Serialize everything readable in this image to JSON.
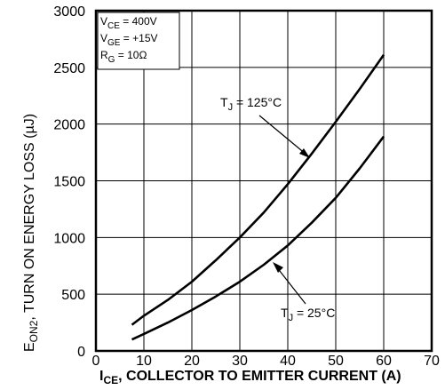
{
  "chart_data": {
    "type": "line",
    "x_range": [
      0,
      70
    ],
    "y_range": [
      0,
      3000
    ],
    "x_ticks": [
      "0",
      "10",
      "20",
      "30",
      "40",
      "50",
      "60",
      "70"
    ],
    "y_ticks": [
      "0",
      "500",
      "1000",
      "1500",
      "2000",
      "2500",
      "3000"
    ],
    "grid": true,
    "ylabel": {
      "main": "E",
      "sub": "ON2",
      "rest": ", TURN ON ENERGY LOSS (µJ)"
    },
    "xlabel": {
      "main": "I",
      "sub": "CE",
      "rest": ", COLLECTOR TO EMITTER CURRENT (A)"
    },
    "conditions": [
      {
        "main": "V",
        "sub": "CE",
        "rest": " = 400V"
      },
      {
        "main": "V",
        "sub": "GE",
        "rest": " = +15V"
      },
      {
        "main": "R",
        "sub": "G",
        "rest": " = 10Ω"
      }
    ],
    "series": [
      {
        "label": {
          "main": "T",
          "sub": "J",
          "rest": " = 125°C"
        },
        "x": [
          7.5,
          10,
          15,
          20,
          25,
          30,
          35,
          40,
          45,
          50,
          55,
          60
        ],
        "y": [
          230,
          310,
          450,
          610,
          800,
          1000,
          1220,
          1470,
          1740,
          2020,
          2310,
          2610
        ]
      },
      {
        "label": {
          "main": "T",
          "sub": "J",
          "rest": " = 25°C"
        },
        "x": [
          7.5,
          10,
          15,
          20,
          25,
          30,
          35,
          40,
          45,
          50,
          55,
          60
        ],
        "y": [
          100,
          150,
          250,
          360,
          480,
          610,
          760,
          930,
          1130,
          1350,
          1610,
          1890
        ]
      }
    ]
  }
}
